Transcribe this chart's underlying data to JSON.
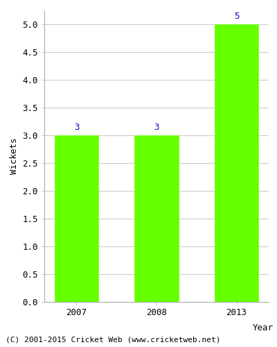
{
  "years": [
    "2007",
    "2008",
    "2013"
  ],
  "values": [
    3,
    3,
    5
  ],
  "bar_color": "#66ff00",
  "bar_edgecolor": "#66ff00",
  "label_color": "#0000cc",
  "label_fontsize": 9,
  "xlabel": "Year",
  "ylabel": "Wickets",
  "ylim": [
    0,
    5.25
  ],
  "yticks": [
    0.0,
    0.5,
    1.0,
    1.5,
    2.0,
    2.5,
    3.0,
    3.5,
    4.0,
    4.5,
    5.0
  ],
  "footer": "(C) 2001-2015 Cricket Web (www.cricketweb.net)",
  "footer_fontsize": 8,
  "background_color": "#ffffff",
  "axes_background": "#ffffff",
  "grid_color": "#cccccc",
  "tick_label_fontsize": 9,
  "axis_label_fontsize": 9,
  "bar_width": 0.55
}
